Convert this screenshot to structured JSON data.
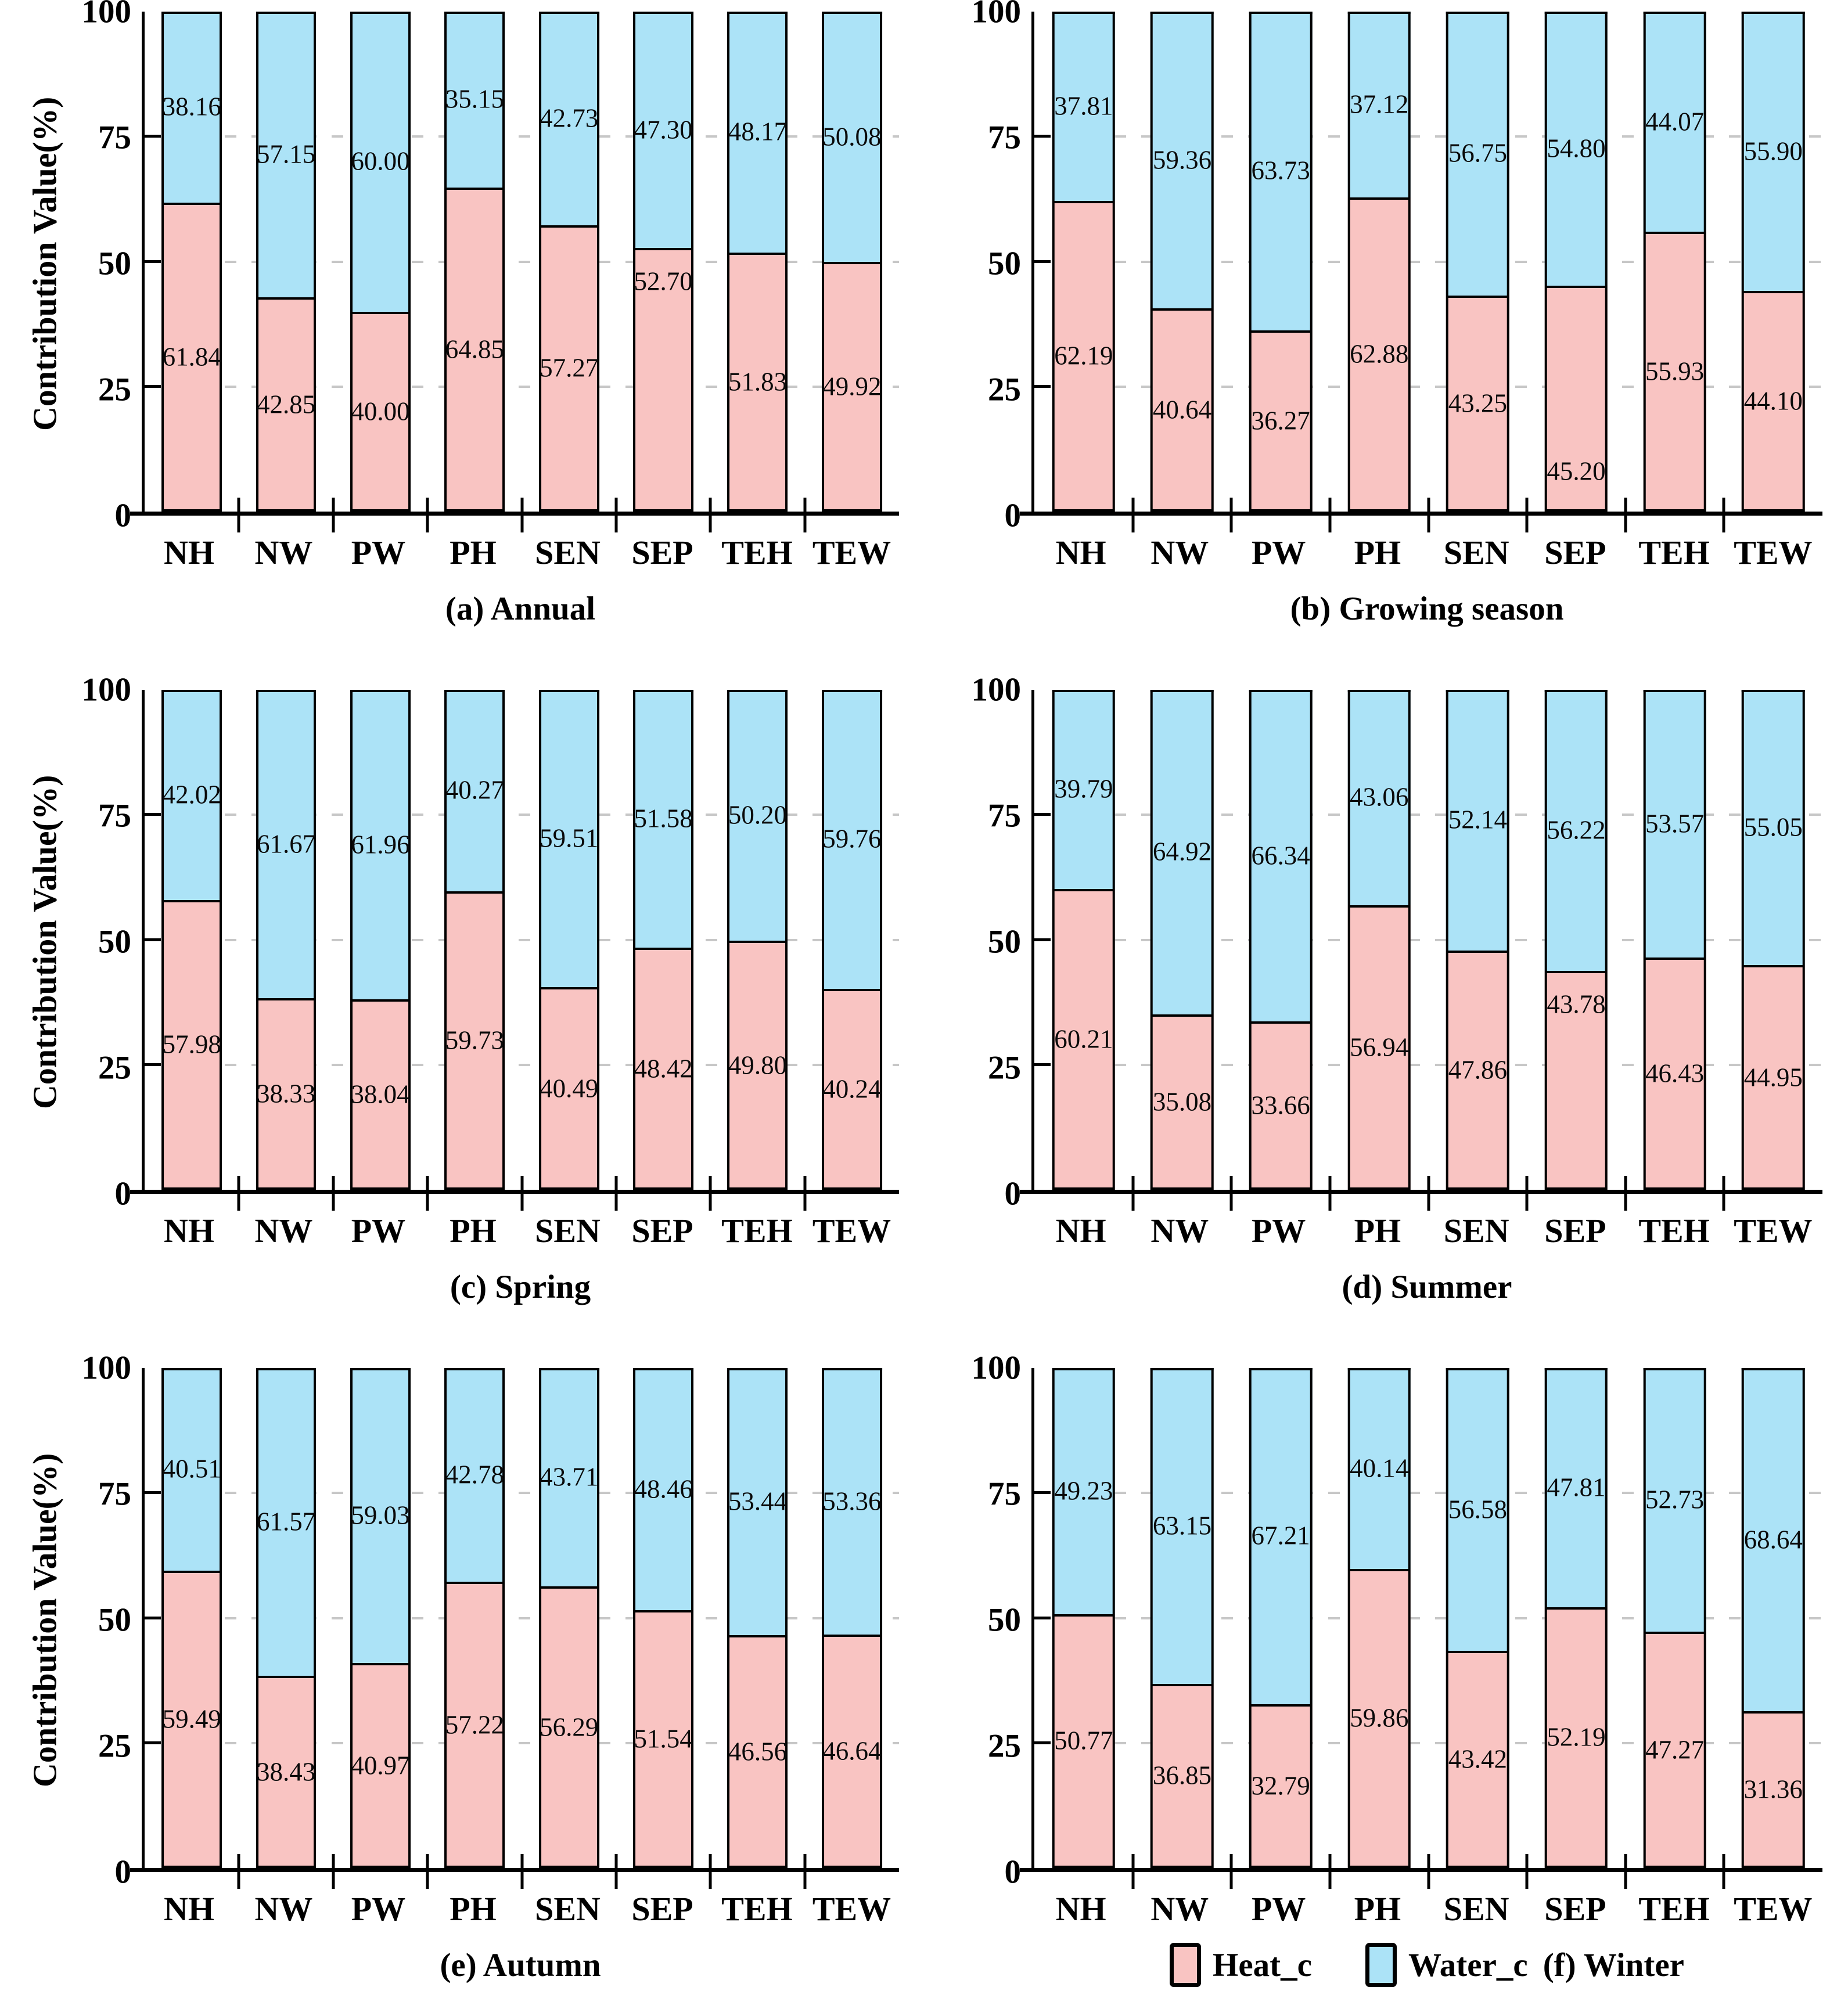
{
  "figure": {
    "ylabel": "Contribution Value(%)",
    "categories": [
      "NH",
      "NW",
      "PW",
      "PH",
      "SEN",
      "SEP",
      "TEH",
      "TEW"
    ],
    "colors": {
      "heat": "#F9C4C2",
      "water": "#ACE3F7",
      "grid": "#c7c7c7",
      "axis": "#000000"
    },
    "legend": {
      "items": [
        {
          "label": "Heat_c",
          "color": "#F9C4C2"
        },
        {
          "label": "Water_c",
          "color": "#ACE3F7"
        }
      ]
    }
  },
  "chart_data": [
    {
      "type": "bar",
      "stacked": true,
      "title": "(a) Annual",
      "caption": "(a) Annual",
      "categories": [
        "NH",
        "NW",
        "PW",
        "PH",
        "SEN",
        "SEP",
        "TEH",
        "TEW"
      ],
      "series": [
        {
          "name": "Heat_c",
          "color": "#F9C4C2",
          "values": [
            61.84,
            42.85,
            40.0,
            64.85,
            57.27,
            52.7,
            51.83,
            49.92
          ]
        },
        {
          "name": "Water_c",
          "color": "#ACE3F7",
          "values": [
            38.16,
            57.15,
            60.0,
            35.15,
            42.73,
            47.3,
            48.17,
            50.08
          ]
        }
      ],
      "ylabel": "Contribution Value(%)",
      "show_ylabel": true,
      "ylim": [
        0,
        100
      ],
      "yticks": [
        0,
        25,
        50,
        75,
        100
      ],
      "grid": true,
      "legend_row": false,
      "label_overrides": [
        {
          "series": 0,
          "index": 5,
          "y": 46
        }
      ]
    },
    {
      "type": "bar",
      "stacked": true,
      "title": "(b) Growing season",
      "caption": "(b) Growing season",
      "categories": [
        "NH",
        "NW",
        "PW",
        "PH",
        "SEN",
        "SEP",
        "TEH",
        "TEW"
      ],
      "series": [
        {
          "name": "Heat_c",
          "color": "#F9C4C2",
          "values": [
            62.19,
            40.64,
            36.27,
            62.88,
            43.25,
            45.2,
            55.93,
            44.1
          ]
        },
        {
          "name": "Water_c",
          "color": "#ACE3F7",
          "values": [
            37.81,
            59.36,
            63.73,
            37.12,
            56.75,
            54.8,
            44.07,
            55.9
          ]
        }
      ],
      "ylabel": "Contribution Value(%)",
      "show_ylabel": false,
      "ylim": [
        0,
        100
      ],
      "yticks": [
        0,
        25,
        50,
        75,
        100
      ],
      "grid": true,
      "legend_row": false,
      "label_overrides": [
        {
          "series": 0,
          "index": 5,
          "y": 8
        }
      ]
    },
    {
      "type": "bar",
      "stacked": true,
      "title": "(c) Spring",
      "caption": "(c) Spring",
      "categories": [
        "NH",
        "NW",
        "PW",
        "PH",
        "SEN",
        "SEP",
        "TEH",
        "TEW"
      ],
      "series": [
        {
          "name": "Heat_c",
          "color": "#F9C4C2",
          "values": [
            57.98,
            38.33,
            38.04,
            59.73,
            40.49,
            48.42,
            49.8,
            40.24
          ]
        },
        {
          "name": "Water_c",
          "color": "#ACE3F7",
          "values": [
            42.02,
            61.67,
            61.96,
            40.27,
            59.51,
            51.58,
            50.2,
            59.76
          ]
        }
      ],
      "ylabel": "Contribution Value(%)",
      "show_ylabel": true,
      "ylim": [
        0,
        100
      ],
      "yticks": [
        0,
        25,
        50,
        75,
        100
      ],
      "grid": true,
      "legend_row": false,
      "label_overrides": []
    },
    {
      "type": "bar",
      "stacked": true,
      "title": "(d) Summer",
      "caption": "(d) Summer",
      "categories": [
        "NH",
        "NW",
        "PW",
        "PH",
        "SEN",
        "SEP",
        "TEH",
        "TEW"
      ],
      "series": [
        {
          "name": "Heat_c",
          "color": "#F9C4C2",
          "values": [
            60.21,
            35.08,
            33.66,
            56.94,
            47.86,
            43.78,
            46.43,
            44.95
          ]
        },
        {
          "name": "Water_c",
          "color": "#ACE3F7",
          "values": [
            39.79,
            64.92,
            66.34,
            43.06,
            52.14,
            56.22,
            53.57,
            55.05
          ]
        }
      ],
      "ylabel": "Contribution Value(%)",
      "show_ylabel": false,
      "ylim": [
        0,
        100
      ],
      "yticks": [
        0,
        25,
        50,
        75,
        100
      ],
      "grid": true,
      "legend_row": false,
      "label_overrides": [
        {
          "series": 0,
          "index": 5,
          "y": 37
        }
      ]
    },
    {
      "type": "bar",
      "stacked": true,
      "title": "(e) Autumn",
      "caption": "(e) Autumn",
      "categories": [
        "NH",
        "NW",
        "PW",
        "PH",
        "SEN",
        "SEP",
        "TEH",
        "TEW"
      ],
      "series": [
        {
          "name": "Heat_c",
          "color": "#F9C4C2",
          "values": [
            59.49,
            38.43,
            40.97,
            57.22,
            56.29,
            51.54,
            46.56,
            46.64
          ]
        },
        {
          "name": "Water_c",
          "color": "#ACE3F7",
          "values": [
            40.51,
            61.57,
            59.03,
            42.78,
            43.71,
            48.46,
            53.44,
            53.36
          ]
        }
      ],
      "ylabel": "Contribution Value(%)",
      "show_ylabel": true,
      "ylim": [
        0,
        100
      ],
      "yticks": [
        0,
        25,
        50,
        75,
        100
      ],
      "grid": true,
      "legend_row": false,
      "label_overrides": []
    },
    {
      "type": "bar",
      "stacked": true,
      "title": "(f) Winter",
      "caption": "(f) Winter",
      "categories": [
        "NH",
        "NW",
        "PW",
        "PH",
        "SEN",
        "SEP",
        "TEH",
        "TEW"
      ],
      "series": [
        {
          "name": "Heat_c",
          "color": "#F9C4C2",
          "values": [
            50.77,
            36.85,
            32.79,
            59.86,
            43.42,
            52.19,
            47.27,
            31.36
          ]
        },
        {
          "name": "Water_c",
          "color": "#ACE3F7",
          "values": [
            49.23,
            63.15,
            67.21,
            40.14,
            56.58,
            47.81,
            52.73,
            68.64
          ]
        }
      ],
      "ylabel": "Contribution Value(%)",
      "show_ylabel": false,
      "ylim": [
        0,
        100
      ],
      "yticks": [
        0,
        25,
        50,
        75,
        100
      ],
      "grid": true,
      "legend_row": true,
      "label_overrides": []
    }
  ]
}
